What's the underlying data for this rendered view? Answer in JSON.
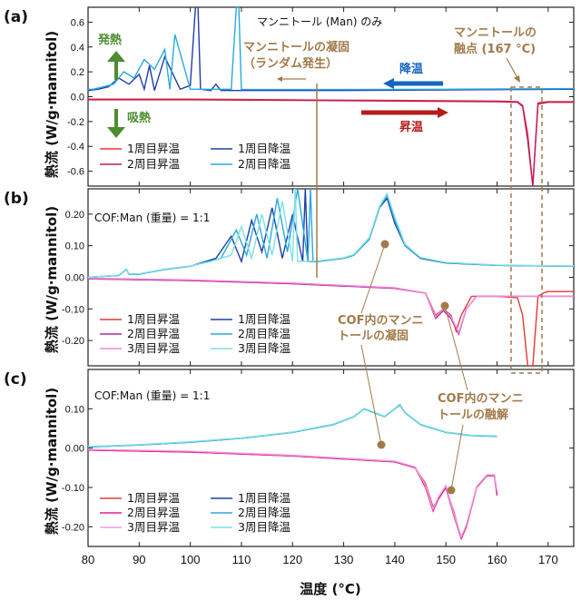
{
  "chart_data": [
    {
      "panel": "(a)",
      "type": "line",
      "title": "マンニトール (Man) のみ",
      "xlabel": "温度 (°C)",
      "ylabel": "熱流 (W/g·mannitol)",
      "xlim": [
        80,
        175
      ],
      "ylim": [
        -0.72,
        0.72
      ],
      "yticks": [
        "0.6",
        "0.4",
        "0.2",
        "0.0",
        "-0.2",
        "-0.4",
        "-0.6"
      ],
      "legend": [
        "1周目昇温",
        "2周目昇温",
        "1周目降温",
        "2周目降温"
      ],
      "annotations": {
        "solidification": "マンニトールの凝固（ランダム発生）",
        "melting_point": "マンニトールの融点 (167 °C)",
        "cooling": "降温",
        "heating": "昇温",
        "exo": "発熱",
        "endo": "吸熱"
      },
      "series": [
        {
          "name": "1周目昇温",
          "color": "#e53935",
          "x": [
            80,
            100,
            120,
            140,
            160,
            164,
            165,
            166,
            167,
            168,
            170,
            175
          ],
          "y": [
            -0.02,
            -0.02,
            -0.025,
            -0.03,
            -0.035,
            -0.04,
            -0.07,
            -0.3,
            -0.72,
            -0.05,
            -0.04,
            -0.04
          ]
        },
        {
          "name": "2周目昇温",
          "color": "#c2185b",
          "x": [
            80,
            100,
            120,
            140,
            160,
            164,
            165,
            166,
            167,
            168,
            170,
            175
          ],
          "y": [
            -0.025,
            -0.025,
            -0.03,
            -0.035,
            -0.04,
            -0.045,
            -0.08,
            -0.35,
            -0.72,
            -0.06,
            -0.045,
            -0.045
          ]
        },
        {
          "name": "1周目降温",
          "color": "#1e3fa8",
          "x": [
            175,
            150,
            130,
            110,
            106,
            105,
            104,
            102,
            101.5,
            101,
            100,
            98,
            95,
            93,
            92,
            91,
            90,
            88,
            86,
            84,
            82,
            80
          ],
          "y": [
            0.06,
            0.055,
            0.05,
            0.05,
            0.05,
            0.1,
            0.05,
            0.06,
            0.72,
            0.72,
            0.09,
            0.06,
            0.32,
            0.05,
            0.25,
            0.06,
            0.18,
            0.1,
            0.15,
            0.08,
            0.06,
            0.05
          ]
        },
        {
          "name": "2周目降温",
          "color": "#29a9e0",
          "x": [
            175,
            150,
            130,
            112,
            110,
            109.5,
            109,
            108,
            104,
            100,
            97,
            96,
            95,
            93,
            91,
            89,
            87,
            85,
            83,
            81,
            80
          ],
          "y": [
            0.065,
            0.06,
            0.058,
            0.058,
            0.058,
            0.72,
            0.72,
            0.06,
            0.06,
            0.06,
            0.5,
            0.06,
            0.38,
            0.22,
            0.3,
            0.15,
            0.2,
            0.1,
            0.08,
            0.06,
            0.06
          ]
        }
      ]
    },
    {
      "panel": "(b)",
      "type": "line",
      "title": "COF:Man (重量) = 1:1",
      "xlabel": "温度 (°C)",
      "ylabel": "熱流 (W/g·mannitol)",
      "xlim": [
        80,
        175
      ],
      "ylim": [
        -0.28,
        0.28
      ],
      "yticks": [
        "0.20",
        "0.10",
        "0.00",
        "-0.10",
        "-0.20"
      ],
      "legend": [
        "1周目昇温",
        "2周目昇温",
        "3周目昇温",
        "1周目降温",
        "2周目降温",
        "3周目降温"
      ],
      "annotations": {
        "solidification_in_cof": "COF内のマンニトールの凝固"
      },
      "series": [
        {
          "name": "1周目昇温",
          "color": "#e53935",
          "x": [
            80,
            100,
            120,
            140,
            146,
            148,
            149.5,
            151,
            152,
            153,
            155,
            160,
            164,
            165,
            166,
            167,
            168,
            169,
            170,
            175
          ],
          "y": [
            -0.005,
            -0.01,
            -0.02,
            -0.035,
            -0.05,
            -0.12,
            -0.1,
            -0.12,
            -0.17,
            -0.12,
            -0.06,
            -0.06,
            -0.065,
            -0.12,
            -0.28,
            -0.28,
            -0.06,
            -0.05,
            -0.045,
            -0.045
          ]
        },
        {
          "name": "2周目昇温",
          "color": "#b02ca6",
          "x": [
            80,
            100,
            120,
            140,
            146,
            148,
            149.5,
            151,
            152.5,
            154,
            156,
            160,
            164,
            166,
            168,
            175
          ],
          "y": [
            -0.005,
            -0.01,
            -0.02,
            -0.035,
            -0.05,
            -0.13,
            -0.105,
            -0.13,
            -0.18,
            -0.1,
            -0.06,
            -0.06,
            -0.06,
            -0.06,
            -0.06,
            -0.06
          ]
        },
        {
          "name": "3周目昇温",
          "color": "#f08ad8",
          "x": [
            80,
            100,
            120,
            140,
            146,
            148,
            149.5,
            151,
            152.5,
            154,
            156,
            160,
            166,
            175
          ],
          "y": [
            -0.003,
            -0.008,
            -0.018,
            -0.033,
            -0.05,
            -0.125,
            -0.1,
            -0.125,
            -0.175,
            -0.1,
            -0.06,
            -0.06,
            -0.06,
            -0.06
          ]
        },
        {
          "name": "1周目降温",
          "color": "#1e3fa8",
          "x": [
            175,
            160,
            150,
            145,
            142,
            140,
            138.5,
            137,
            135,
            132,
            130,
            125,
            123,
            122.5,
            122,
            120,
            118,
            116,
            114,
            112,
            110,
            108,
            105,
            100,
            95,
            90,
            88,
            87.5,
            86,
            80
          ],
          "y": [
            0.035,
            0.038,
            0.045,
            0.06,
            0.1,
            0.17,
            0.25,
            0.22,
            0.12,
            0.07,
            0.06,
            0.05,
            0.05,
            0.28,
            0.05,
            0.2,
            0.06,
            0.22,
            0.08,
            0.18,
            0.05,
            0.13,
            0.06,
            0.035,
            0.025,
            0.01,
            0.01,
            0.025,
            0.006,
            0.0
          ]
        },
        {
          "name": "2周目降温",
          "color": "#29a9e0",
          "x": [
            175,
            160,
            150,
            145,
            142,
            140,
            138.5,
            137,
            135,
            132,
            130,
            125,
            124,
            123.5,
            123,
            121,
            119,
            117,
            115,
            113,
            111,
            109,
            106,
            100,
            95,
            90,
            88,
            87.5,
            86,
            80
          ],
          "y": [
            0.035,
            0.038,
            0.046,
            0.062,
            0.1,
            0.18,
            0.26,
            0.22,
            0.12,
            0.07,
            0.06,
            0.05,
            0.05,
            0.28,
            0.05,
            0.28,
            0.08,
            0.25,
            0.06,
            0.2,
            0.07,
            0.15,
            0.06,
            0.035,
            0.025,
            0.01,
            0.01,
            0.025,
            0.006,
            0.0
          ]
        },
        {
          "name": "3周目降温",
          "color": "#7fe0e0",
          "x": [
            175,
            160,
            150,
            145,
            142,
            140,
            138.5,
            137,
            135,
            132,
            130,
            125,
            121,
            120.5,
            120,
            118,
            116,
            114,
            112,
            110,
            108,
            104,
            100,
            95,
            90,
            88,
            87.5,
            86,
            80
          ],
          "y": [
            0.036,
            0.039,
            0.047,
            0.063,
            0.105,
            0.19,
            0.265,
            0.225,
            0.125,
            0.072,
            0.062,
            0.052,
            0.05,
            0.28,
            0.05,
            0.24,
            0.07,
            0.2,
            0.06,
            0.16,
            0.07,
            0.05,
            0.036,
            0.026,
            0.011,
            0.011,
            0.026,
            0.007,
            0.0
          ]
        }
      ]
    },
    {
      "panel": "(c)",
      "type": "line",
      "title": "COF:Man (重量) = 1:1",
      "xlabel": "温度 (°C)",
      "ylabel": "熱流 (W/g·mannitol)",
      "xlim": [
        80,
        175
      ],
      "ylim": [
        -0.25,
        0.2
      ],
      "yticks": [
        "0.10",
        "0.00",
        "-0.10",
        "-0.20"
      ],
      "legend": [
        "1周目昇温",
        "2周目昇温",
        "3周目昇温",
        "1周目降温",
        "2周目降温",
        "3周目降温"
      ],
      "annotations": {
        "melting_in_cof": "COF内のマンニトールの融解"
      },
      "series": [
        {
          "name": "1周目昇温",
          "color": "#e53935",
          "x": [
            80,
            100,
            120,
            140,
            144,
            146,
            147.5,
            148.5,
            150,
            151.5,
            153,
            154,
            156,
            158,
            159.5,
            160
          ],
          "y": [
            -0.005,
            -0.01,
            -0.02,
            -0.035,
            -0.05,
            -0.09,
            -0.15,
            -0.13,
            -0.1,
            -0.16,
            -0.23,
            -0.2,
            -0.1,
            -0.07,
            -0.07,
            -0.12
          ]
        },
        {
          "name": "2周目昇温",
          "color": "#e91e8c",
          "x": [
            80,
            100,
            120,
            140,
            144,
            146,
            147.5,
            148.5,
            150,
            151.5,
            153,
            154,
            156,
            158,
            159.5,
            160
          ],
          "y": [
            -0.005,
            -0.01,
            -0.02,
            -0.035,
            -0.05,
            -0.1,
            -0.16,
            -0.13,
            -0.1,
            -0.17,
            -0.23,
            -0.2,
            -0.1,
            -0.07,
            -0.07,
            -0.12
          ]
        },
        {
          "name": "3周目昇温",
          "color": "#e9a0e6",
          "x": [
            80,
            100,
            120,
            140,
            144,
            146,
            147.5,
            148.5,
            150,
            151.5,
            153,
            154,
            156,
            158,
            159.5,
            160
          ],
          "y": [
            -0.003,
            -0.008,
            -0.018,
            -0.033,
            -0.048,
            -0.095,
            -0.155,
            -0.125,
            -0.095,
            -0.165,
            -0.225,
            -0.195,
            -0.098,
            -0.068,
            -0.068,
            -0.11
          ]
        },
        {
          "name": "1周目降温",
          "color": "#1e3fa8",
          "x": [
            160,
            155,
            150,
            145,
            142,
            141,
            140,
            138,
            136,
            134,
            132,
            128,
            120,
            110,
            100,
            90,
            80
          ],
          "y": [
            0.03,
            0.032,
            0.04,
            0.06,
            0.09,
            0.11,
            0.1,
            0.08,
            0.09,
            0.1,
            0.08,
            0.06,
            0.04,
            0.025,
            0.015,
            0.008,
            0.003
          ]
        },
        {
          "name": "2周目降温",
          "color": "#29a9e0",
          "x": [
            160,
            155,
            150,
            145,
            142,
            141,
            140,
            138,
            136,
            134,
            132,
            128,
            120,
            110,
            100,
            90,
            80
          ],
          "y": [
            0.03,
            0.032,
            0.04,
            0.06,
            0.09,
            0.11,
            0.1,
            0.08,
            0.09,
            0.1,
            0.08,
            0.06,
            0.04,
            0.025,
            0.015,
            0.008,
            0.003
          ]
        },
        {
          "name": "3周目降温",
          "color": "#7fe0e0",
          "x": [
            160,
            155,
            150,
            145,
            142,
            141,
            140,
            138,
            136,
            134,
            132,
            128,
            120,
            110,
            100,
            90,
            80
          ],
          "y": [
            0.031,
            0.033,
            0.041,
            0.061,
            0.091,
            0.112,
            0.101,
            0.081,
            0.091,
            0.101,
            0.081,
            0.061,
            0.041,
            0.026,
            0.016,
            0.009,
            0.004
          ]
        }
      ]
    }
  ],
  "shared_xticks": [
    "80",
    "90",
    "100",
    "110",
    "120",
    "130",
    "140",
    "150",
    "160",
    "170"
  ],
  "shared_xlabel": "温度 (°C)"
}
